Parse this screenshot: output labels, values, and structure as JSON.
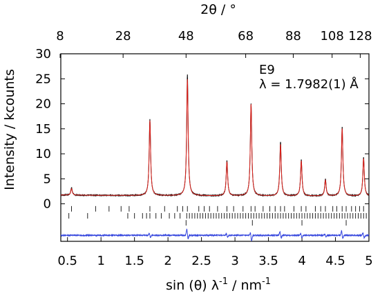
{
  "chart_data": {
    "type": "line",
    "x_axis": {
      "label": "sin (θ) λ",
      "label_sup1": "-1",
      "label_mid": " / nm",
      "label_sup2": "-1",
      "range": [
        0.4,
        5.0
      ],
      "ticks": [
        0.5,
        1,
        1.5,
        2,
        2.5,
        3,
        3.5,
        4,
        4.5,
        5
      ],
      "tick_labels": [
        "0.5",
        "1",
        "1.5",
        "2",
        "2.5",
        "3",
        "3.5",
        "4",
        "4.5",
        "5"
      ]
    },
    "top_axis": {
      "label": "2θ / °",
      "tick_labels": [
        "8",
        "28",
        "48",
        "68",
        "88",
        "108",
        "128"
      ],
      "tick_positions_bottom_units": [
        0.39,
        1.33,
        2.27,
        3.16,
        3.87,
        4.45,
        4.87
      ]
    },
    "y_axis": {
      "label": "Intensity / kcounts",
      "range": [
        -7.5,
        30
      ],
      "ticks": [
        0,
        5,
        10,
        15,
        20,
        25,
        30
      ],
      "tick_labels": [
        "0",
        "5",
        "10",
        "15",
        "20",
        "25",
        "30"
      ]
    },
    "annotation": {
      "line1": "E9",
      "line2": "λ = 1.7982(1) Å"
    },
    "background_level": 1.5,
    "peak_width": 0.013,
    "series": [
      {
        "role": "observed",
        "color": "#000000",
        "peaks": [
          {
            "x": 0.56,
            "y": 3.0
          },
          {
            "x": 1.73,
            "y": 16.8
          },
          {
            "x": 2.29,
            "y": 25.7
          },
          {
            "x": 2.88,
            "y": 8.5
          },
          {
            "x": 3.24,
            "y": 20.0
          },
          {
            "x": 3.68,
            "y": 12.3
          },
          {
            "x": 3.99,
            "y": 8.7
          },
          {
            "x": 4.35,
            "y": 4.9
          },
          {
            "x": 4.6,
            "y": 15.3
          },
          {
            "x": 4.92,
            "y": 9.2
          }
        ]
      },
      {
        "role": "calculated",
        "color": "#e0201a",
        "peaks": [
          {
            "x": 0.56,
            "y": 2.8
          },
          {
            "x": 1.73,
            "y": 16.5
          },
          {
            "x": 2.29,
            "y": 24.8
          },
          {
            "x": 2.88,
            "y": 8.3
          },
          {
            "x": 3.24,
            "y": 19.8
          },
          {
            "x": 3.68,
            "y": 11.8
          },
          {
            "x": 3.99,
            "y": 8.5
          },
          {
            "x": 4.35,
            "y": 4.6
          },
          {
            "x": 4.6,
            "y": 15.0
          },
          {
            "x": 4.92,
            "y": 9.0
          }
        ]
      },
      {
        "role": "difference",
        "color": "#3344dd",
        "level": -6.3,
        "spikes": [
          {
            "x": 1.73,
            "up": 0.5,
            "down": -0.5
          },
          {
            "x": 2.29,
            "up": 1.4,
            "down": -0.9
          },
          {
            "x": 2.88,
            "up": 0.4,
            "down": -0.4
          },
          {
            "x": 3.24,
            "up": 0.6,
            "down": -1.2
          },
          {
            "x": 3.68,
            "up": 0.9,
            "down": -0.7
          },
          {
            "x": 3.99,
            "up": 0.4,
            "down": -0.5
          },
          {
            "x": 4.35,
            "up": 0.3,
            "down": -0.4
          },
          {
            "x": 4.6,
            "up": 1.0,
            "down": -0.8
          },
          {
            "x": 4.92,
            "up": 0.6,
            "down": -0.6
          }
        ]
      }
    ],
    "reflection_markers": [
      {
        "row": 1,
        "y_level": -1.0,
        "positions": [
          0.56,
          0.92,
          1.12,
          1.3,
          1.42,
          1.73,
          1.95,
          2.14,
          2.22,
          2.29,
          2.46,
          2.54,
          2.62,
          2.74,
          2.88,
          2.98,
          3.12,
          3.24,
          3.3,
          3.42,
          3.52,
          3.6,
          3.68,
          3.74,
          3.88,
          3.99,
          4.06,
          4.2,
          4.28,
          4.35,
          4.46,
          4.52,
          4.6,
          4.66,
          4.74,
          4.8,
          4.86,
          4.92
        ]
      },
      {
        "row": 2,
        "y_level": -2.4,
        "positions": [
          0.52,
          0.8,
          1.4,
          1.5,
          1.62,
          1.68,
          1.73,
          1.82,
          1.9,
          2.02,
          2.1,
          2.18,
          2.28,
          2.32,
          2.36,
          2.4,
          2.44,
          2.48,
          2.52,
          2.56,
          2.6,
          2.64,
          2.68,
          2.72,
          2.76,
          2.8,
          2.84,
          2.88,
          2.92,
          2.96,
          3.0,
          3.04,
          3.08,
          3.12,
          3.16,
          3.2,
          3.24,
          3.28,
          3.32,
          3.36,
          3.4,
          3.44,
          3.48,
          3.52,
          3.56,
          3.6,
          3.64,
          3.68,
          3.72,
          3.76,
          3.8,
          3.84,
          3.88,
          3.92,
          3.96,
          4.0,
          4.04,
          4.08,
          4.12,
          4.16,
          4.2,
          4.24,
          4.28,
          4.32,
          4.36,
          4.4,
          4.44,
          4.48,
          4.52,
          4.56,
          4.6,
          4.64,
          4.68,
          4.72,
          4.76,
          4.8,
          4.84,
          4.88,
          4.92,
          4.96
        ]
      },
      {
        "row": 3,
        "y_level": -3.8,
        "positions": [
          2.27,
          3.26,
          4.0,
          4.66
        ]
      }
    ]
  }
}
